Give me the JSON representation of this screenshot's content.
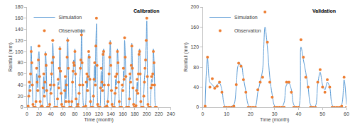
{
  "chart_data": [
    {
      "type": "line",
      "title": "Calibration",
      "x_label": "Time (month)",
      "y_label": "Rainfall (mm)",
      "x": [
        1,
        2,
        3,
        4,
        5,
        6,
        7,
        8,
        9,
        10,
        11,
        12,
        13,
        14,
        15,
        16,
        17,
        18,
        19,
        20,
        21,
        22,
        23,
        24,
        25,
        26,
        27,
        28,
        29,
        30,
        31,
        32,
        33,
        34,
        35,
        36,
        37,
        38,
        39,
        40,
        41,
        42,
        43,
        44,
        45,
        46,
        47,
        48,
        49,
        50,
        51,
        52,
        53,
        54,
        55,
        56,
        57,
        58,
        59,
        60,
        61,
        62,
        63,
        64,
        65,
        66,
        67,
        68,
        69,
        70,
        71,
        72,
        73,
        74,
        75,
        76,
        77,
        78,
        79,
        80,
        81,
        82,
        83,
        84,
        85,
        86,
        87,
        88,
        89,
        90,
        91,
        92,
        93,
        94,
        95,
        96,
        97,
        98,
        99,
        100,
        101,
        102,
        103,
        104,
        105,
        106,
        107,
        108,
        109,
        110,
        111,
        112,
        113,
        114,
        115,
        116,
        117,
        118,
        119,
        120,
        121,
        122,
        123,
        124,
        125,
        126,
        127,
        128,
        129,
        130,
        131,
        132,
        133,
        134,
        135,
        136,
        137,
        138,
        139,
        140,
        141,
        142,
        143,
        144,
        145,
        146,
        147,
        148,
        149,
        150,
        151,
        152,
        153,
        154,
        155,
        156,
        157,
        158,
        159,
        160,
        161,
        162,
        163,
        164,
        165,
        166,
        167,
        168,
        169,
        170,
        171,
        172,
        173,
        174,
        175,
        176,
        177,
        178,
        179,
        180,
        181,
        182,
        183,
        184,
        185,
        186,
        187,
        188,
        189,
        190,
        191,
        192,
        193,
        194,
        195,
        196,
        197,
        198,
        199,
        200,
        201,
        202,
        203,
        204,
        205,
        206,
        207,
        208,
        209,
        210,
        211,
        212,
        213,
        214,
        215,
        216
      ],
      "series": [
        {
          "name": "Observation",
          "type": "scatter",
          "marker": "circle",
          "color": "#ed7d31",
          "values": [
            0,
            2,
            20,
            45,
            30,
            60,
            100,
            80,
            40,
            5,
            0,
            0,
            0,
            0,
            10,
            70,
            45,
            30,
            85,
            110,
            55,
            10,
            0,
            0,
            2,
            0,
            35,
            60,
            20,
            45,
            95,
            75,
            30,
            0,
            0,
            0,
            0,
            5,
            40,
            25,
            60,
            80,
            120,
            90,
            40,
            0,
            0,
            0,
            0,
            0,
            15,
            50,
            35,
            70,
            105,
            65,
            25,
            5,
            0,
            0,
            0,
            0,
            30,
            55,
            10,
            40,
            90,
            120,
            70,
            10,
            0,
            0,
            0,
            0,
            10,
            45,
            65,
            80,
            75,
            100,
            60,
            15,
            0,
            0,
            5,
            0,
            25,
            40,
            70,
            85,
            130,
            80,
            40,
            0,
            0,
            0,
            0,
            2,
            45,
            60,
            30,
            55,
            100,
            90,
            50,
            10,
            0,
            0,
            0,
            0,
            20,
            50,
            80,
            40,
            110,
            160,
            75,
            5,
            0,
            0,
            0,
            0,
            35,
            70,
            45,
            30,
            95,
            100,
            40,
            0,
            0,
            0,
            2,
            0,
            10,
            40,
            60,
            90,
            115,
            75,
            30,
            5,
            0,
            0,
            0,
            0,
            25,
            55,
            35,
            60,
            100,
            80,
            45,
            10,
            0,
            0,
            0,
            0,
            40,
            30,
            70,
            50,
            125,
            90,
            55,
            0,
            0,
            0,
            0,
            0,
            15,
            60,
            45,
            75,
            110,
            70,
            35,
            5,
            0,
            0,
            0,
            3,
            30,
            50,
            25,
            60,
            95,
            100,
            60,
            10,
            0,
            0,
            0,
            0,
            20,
            45,
            70,
            85,
            120,
            160,
            55,
            5,
            0,
            0,
            0,
            0,
            35,
            55,
            40,
            60,
            100,
            80,
            40,
            0,
            0,
            0
          ]
        },
        {
          "name": "Simulation",
          "type": "line",
          "line_style": "spline",
          "color": "#5b9bd5",
          "values": [
            0,
            5,
            15,
            40,
            35,
            55,
            110,
            75,
            35,
            8,
            0,
            0,
            0,
            3,
            12,
            60,
            50,
            35,
            90,
            100,
            60,
            12,
            0,
            0,
            0,
            5,
            30,
            55,
            25,
            50,
            100,
            80,
            35,
            5,
            0,
            0,
            0,
            8,
            35,
            30,
            55,
            85,
            115,
            95,
            45,
            5,
            0,
            0,
            0,
            2,
            20,
            45,
            40,
            65,
            110,
            70,
            30,
            8,
            0,
            0,
            0,
            3,
            25,
            50,
            15,
            45,
            95,
            125,
            65,
            12,
            0,
            0,
            0,
            2,
            15,
            40,
            60,
            85,
            80,
            105,
            55,
            15,
            0,
            0,
            3,
            5,
            20,
            45,
            65,
            80,
            140,
            85,
            45,
            5,
            0,
            0,
            0,
            5,
            40,
            55,
            35,
            60,
            95,
            95,
            55,
            12,
            0,
            0,
            0,
            3,
            25,
            55,
            75,
            45,
            115,
            150,
            80,
            8,
            0,
            0,
            0,
            2,
            30,
            65,
            50,
            35,
            100,
            105,
            45,
            5,
            0,
            0,
            0,
            5,
            15,
            45,
            55,
            85,
            120,
            80,
            35,
            8,
            0,
            0,
            0,
            3,
            20,
            50,
            40,
            55,
            105,
            85,
            50,
            12,
            0,
            0,
            0,
            5,
            35,
            35,
            65,
            55,
            120,
            95,
            50,
            5,
            0,
            0,
            0,
            2,
            20,
            55,
            50,
            70,
            115,
            75,
            40,
            8,
            0,
            0,
            0,
            5,
            25,
            45,
            30,
            65,
            100,
            105,
            55,
            12,
            0,
            0,
            0,
            3,
            25,
            50,
            65,
            90,
            115,
            155,
            60,
            8,
            0,
            0,
            0,
            5,
            30,
            50,
            45,
            55,
            105,
            85,
            45,
            5,
            0,
            0
          ]
        }
      ],
      "xlim": [
        0,
        240
      ],
      "xticks": [
        0,
        20,
        40,
        60,
        80,
        100,
        120,
        140,
        160,
        180,
        200,
        220,
        240
      ],
      "ylim": [
        0,
        180
      ],
      "yticks": [
        0,
        20,
        40,
        60,
        80,
        100,
        120,
        140,
        160,
        180
      ],
      "grid": false,
      "legend": "upper left"
    },
    {
      "type": "line",
      "title": "Validation",
      "x_label": "Time (month)",
      "y_label": "Rainfall (mm)",
      "x": [
        1,
        2,
        3,
        4,
        5,
        6,
        7,
        8,
        9,
        10,
        11,
        12,
        13,
        14,
        15,
        16,
        17,
        18,
        19,
        20,
        21,
        22,
        23,
        24,
        25,
        26,
        27,
        28,
        29,
        30,
        31,
        32,
        33,
        34,
        35,
        36,
        37,
        38,
        39,
        40,
        41,
        42,
        43,
        44,
        45,
        46,
        47,
        48,
        49,
        50,
        51,
        52,
        53,
        54,
        55,
        56,
        57,
        58,
        59,
        60
      ],
      "series": [
        {
          "name": "Observation",
          "type": "scatter",
          "marker": "circle",
          "color": "#ed7d31",
          "values": [
            2,
            100,
            40,
            57,
            38,
            42,
            50,
            30,
            0,
            0,
            0,
            0,
            2,
            45,
            88,
            82,
            55,
            30,
            0,
            0,
            0,
            0,
            35,
            50,
            60,
            190,
            130,
            50,
            20,
            0,
            0,
            0,
            0,
            0,
            50,
            50,
            30,
            0,
            0,
            0,
            135,
            100,
            60,
            40,
            0,
            0,
            0,
            50,
            75,
            40,
            30,
            55,
            40,
            0,
            0,
            0,
            0,
            2,
            60,
            0
          ]
        },
        {
          "name": "Simulation",
          "type": "line",
          "line_style": "spline",
          "color": "#5b9bd5",
          "values": [
            3,
            98,
            50,
            45,
            40,
            45,
            48,
            35,
            5,
            0,
            0,
            2,
            5,
            40,
            85,
            85,
            58,
            32,
            5,
            0,
            0,
            2,
            30,
            50,
            75,
            160,
            120,
            60,
            25,
            3,
            0,
            0,
            0,
            10,
            45,
            48,
            35,
            5,
            0,
            0,
            120,
            95,
            70,
            40,
            5,
            0,
            2,
            45,
            70,
            45,
            35,
            50,
            40,
            5,
            0,
            0,
            0,
            5,
            55,
            5
          ]
        }
      ],
      "xlim": [
        0,
        60
      ],
      "xticks": [
        0,
        10,
        20,
        30,
        40,
        50,
        60
      ],
      "ylim": [
        0,
        200
      ],
      "yticks": [
        0,
        40,
        80,
        120,
        160,
        200
      ],
      "grid": false,
      "legend": "upper left"
    }
  ]
}
